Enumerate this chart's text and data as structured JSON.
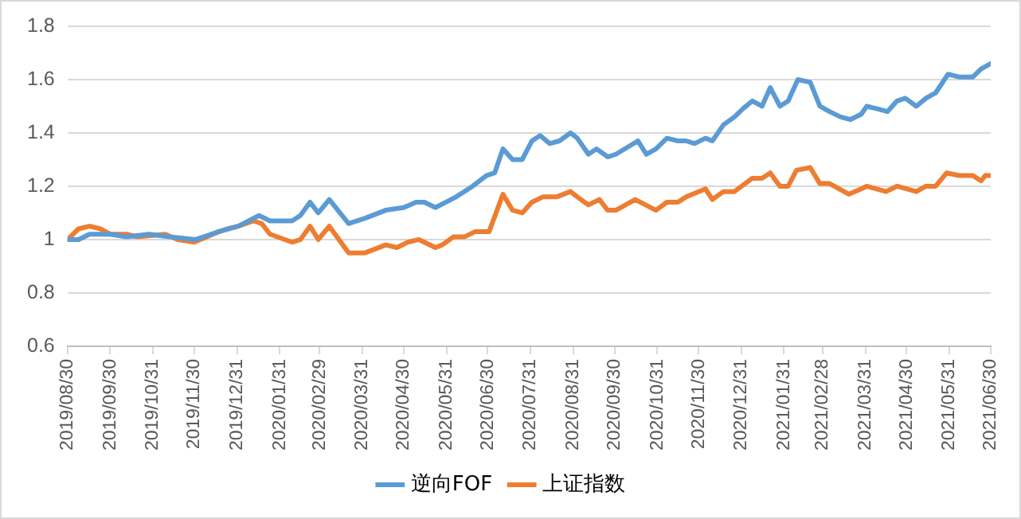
{
  "chart_data": {
    "type": "line",
    "xlim": [
      "2019-08-30",
      "2021-06-30"
    ],
    "xticks": [
      {
        "value": "2019-08-30",
        "label": "2019/08/30"
      },
      {
        "value": "2019-09-30",
        "label": "2019/09/30"
      },
      {
        "value": "2019-10-31",
        "label": "2019/10/31"
      },
      {
        "value": "2019-11-30",
        "label": "2019/11/30"
      },
      {
        "value": "2019-12-31",
        "label": "2019/12/31"
      },
      {
        "value": "2020-01-31",
        "label": "2020/01/31"
      },
      {
        "value": "2020-02-29",
        "label": "2020/02/29"
      },
      {
        "value": "2020-03-31",
        "label": "2020/03/31"
      },
      {
        "value": "2020-04-30",
        "label": "2020/04/30"
      },
      {
        "value": "2020-05-31",
        "label": "2020/05/31"
      },
      {
        "value": "2020-06-30",
        "label": "2020/06/30"
      },
      {
        "value": "2020-07-31",
        "label": "2020/07/31"
      },
      {
        "value": "2020-08-31",
        "label": "2020/08/31"
      },
      {
        "value": "2020-09-30",
        "label": "2020/09/30"
      },
      {
        "value": "2020-10-31",
        "label": "2020/10/31"
      },
      {
        "value": "2020-11-30",
        "label": "2020/11/30"
      },
      {
        "value": "2020-12-31",
        "label": "2020/12/31"
      },
      {
        "value": "2021-01-31",
        "label": "2021/01/31"
      },
      {
        "value": "2021-02-28",
        "label": "2021/02/28"
      },
      {
        "value": "2021-03-31",
        "label": "2021/03/31"
      },
      {
        "value": "2021-04-30",
        "label": "2021/04/30"
      },
      {
        "value": "2021-05-31",
        "label": "2021/05/31"
      },
      {
        "value": "2021-06-30",
        "label": "2021/06/30"
      }
    ],
    "ylim": [
      0.6,
      1.8
    ],
    "yticks": [
      0.6,
      0.8,
      1,
      1.2,
      1.4,
      1.6,
      1.8
    ],
    "grid": "y",
    "legend": "bottom",
    "marker": "none",
    "line_style": "solid",
    "series": [
      {
        "name": "逆向FOF",
        "color": "#5b9bd5",
        "x": [
          "2019-08-30",
          "2019-09-07",
          "2019-09-15",
          "2019-09-30",
          "2019-10-12",
          "2019-10-28",
          "2019-11-12",
          "2019-12-01",
          "2019-12-18",
          "2020-01-01",
          "2020-01-16",
          "2020-01-24",
          "2020-02-09",
          "2020-02-15",
          "2020-02-22",
          "2020-02-28",
          "2020-03-07",
          "2020-03-21",
          "2020-04-02",
          "2020-04-17",
          "2020-04-30",
          "2020-05-09",
          "2020-05-15",
          "2020-05-23",
          "2020-06-07",
          "2020-06-19",
          "2020-06-29",
          "2020-07-05",
          "2020-07-11",
          "2020-07-18",
          "2020-07-25",
          "2020-08-01",
          "2020-08-07",
          "2020-08-14",
          "2020-08-21",
          "2020-08-29",
          "2020-09-03",
          "2020-09-11",
          "2020-09-17",
          "2020-09-25",
          "2020-10-01",
          "2020-10-17",
          "2020-10-23",
          "2020-10-30",
          "2020-11-07",
          "2020-11-15",
          "2020-11-21",
          "2020-11-27",
          "2020-12-05",
          "2020-12-10",
          "2020-12-18",
          "2020-12-26",
          "2021-01-01",
          "2021-01-08",
          "2021-01-15",
          "2021-01-21",
          "2021-01-28",
          "2021-02-03",
          "2021-02-10",
          "2021-02-19",
          "2021-02-26",
          "2021-03-05",
          "2021-03-13",
          "2021-03-20",
          "2021-03-28",
          "2021-04-01",
          "2021-04-09",
          "2021-04-16",
          "2021-04-23",
          "2021-04-29",
          "2021-05-07",
          "2021-05-14",
          "2021-05-21",
          "2021-05-30",
          "2021-06-07",
          "2021-06-17",
          "2021-06-23",
          "2021-06-30"
        ],
        "values": [
          1.0,
          1.0,
          1.02,
          1.02,
          1.01,
          1.02,
          1.01,
          1.0,
          1.03,
          1.05,
          1.09,
          1.07,
          1.07,
          1.09,
          1.14,
          1.1,
          1.15,
          1.06,
          1.08,
          1.11,
          1.12,
          1.14,
          1.14,
          1.12,
          1.16,
          1.2,
          1.24,
          1.25,
          1.34,
          1.3,
          1.3,
          1.37,
          1.39,
          1.36,
          1.37,
          1.4,
          1.38,
          1.32,
          1.34,
          1.31,
          1.32,
          1.37,
          1.32,
          1.34,
          1.38,
          1.37,
          1.37,
          1.36,
          1.38,
          1.37,
          1.43,
          1.46,
          1.49,
          1.52,
          1.5,
          1.57,
          1.5,
          1.52,
          1.6,
          1.59,
          1.5,
          1.48,
          1.46,
          1.45,
          1.47,
          1.5,
          1.49,
          1.48,
          1.52,
          1.53,
          1.5,
          1.53,
          1.55,
          1.62,
          1.61,
          1.61,
          1.64,
          1.66
        ]
      },
      {
        "name": "上证指数",
        "color": "#ed7d31",
        "x": [
          "2019-08-30",
          "2019-09-07",
          "2019-09-15",
          "2019-09-23",
          "2019-09-30",
          "2019-10-12",
          "2019-10-20",
          "2019-11-09",
          "2019-11-18",
          "2019-11-30",
          "2019-12-18",
          "2019-12-24",
          "2020-01-01",
          "2020-01-12",
          "2020-01-18",
          "2020-01-24",
          "2020-02-09",
          "2020-02-15",
          "2020-02-22",
          "2020-02-28",
          "2020-03-07",
          "2020-03-21",
          "2020-04-02",
          "2020-04-17",
          "2020-04-25",
          "2020-05-03",
          "2020-05-11",
          "2020-05-23",
          "2020-05-28",
          "2020-06-05",
          "2020-06-13",
          "2020-06-21",
          "2020-07-01",
          "2020-07-11",
          "2020-07-18",
          "2020-07-25",
          "2020-08-01",
          "2020-08-09",
          "2020-08-19",
          "2020-08-29",
          "2020-09-03",
          "2020-09-11",
          "2020-09-19",
          "2020-09-25",
          "2020-10-01",
          "2020-10-15",
          "2020-10-30",
          "2020-11-07",
          "2020-11-15",
          "2020-11-21",
          "2020-12-05",
          "2020-12-10",
          "2020-12-18",
          "2020-12-26",
          "2021-01-08",
          "2021-01-15",
          "2021-01-21",
          "2021-01-28",
          "2021-02-03",
          "2021-02-09",
          "2021-02-19",
          "2021-02-26",
          "2021-03-05",
          "2021-03-19",
          "2021-03-28",
          "2021-04-01",
          "2021-04-15",
          "2021-04-23",
          "2021-05-07",
          "2021-05-14",
          "2021-05-21",
          "2021-05-29",
          "2021-06-07",
          "2021-06-17",
          "2021-06-23",
          "2021-06-26",
          "2021-06-30"
        ],
        "values": [
          1.0,
          1.04,
          1.05,
          1.04,
          1.02,
          1.02,
          1.01,
          1.02,
          1.0,
          0.99,
          1.03,
          1.04,
          1.05,
          1.07,
          1.06,
          1.02,
          0.99,
          1.0,
          1.05,
          1.0,
          1.05,
          0.95,
          0.95,
          0.98,
          0.97,
          0.99,
          1.0,
          0.97,
          0.98,
          1.01,
          1.01,
          1.03,
          1.03,
          1.17,
          1.11,
          1.1,
          1.14,
          1.16,
          1.16,
          1.18,
          1.16,
          1.13,
          1.15,
          1.11,
          1.11,
          1.15,
          1.11,
          1.14,
          1.14,
          1.16,
          1.19,
          1.15,
          1.18,
          1.18,
          1.23,
          1.23,
          1.25,
          1.2,
          1.2,
          1.26,
          1.27,
          1.21,
          1.21,
          1.17,
          1.19,
          1.2,
          1.18,
          1.2,
          1.18,
          1.2,
          1.2,
          1.25,
          1.24,
          1.24,
          1.22,
          1.24,
          1.24
        ]
      }
    ]
  }
}
